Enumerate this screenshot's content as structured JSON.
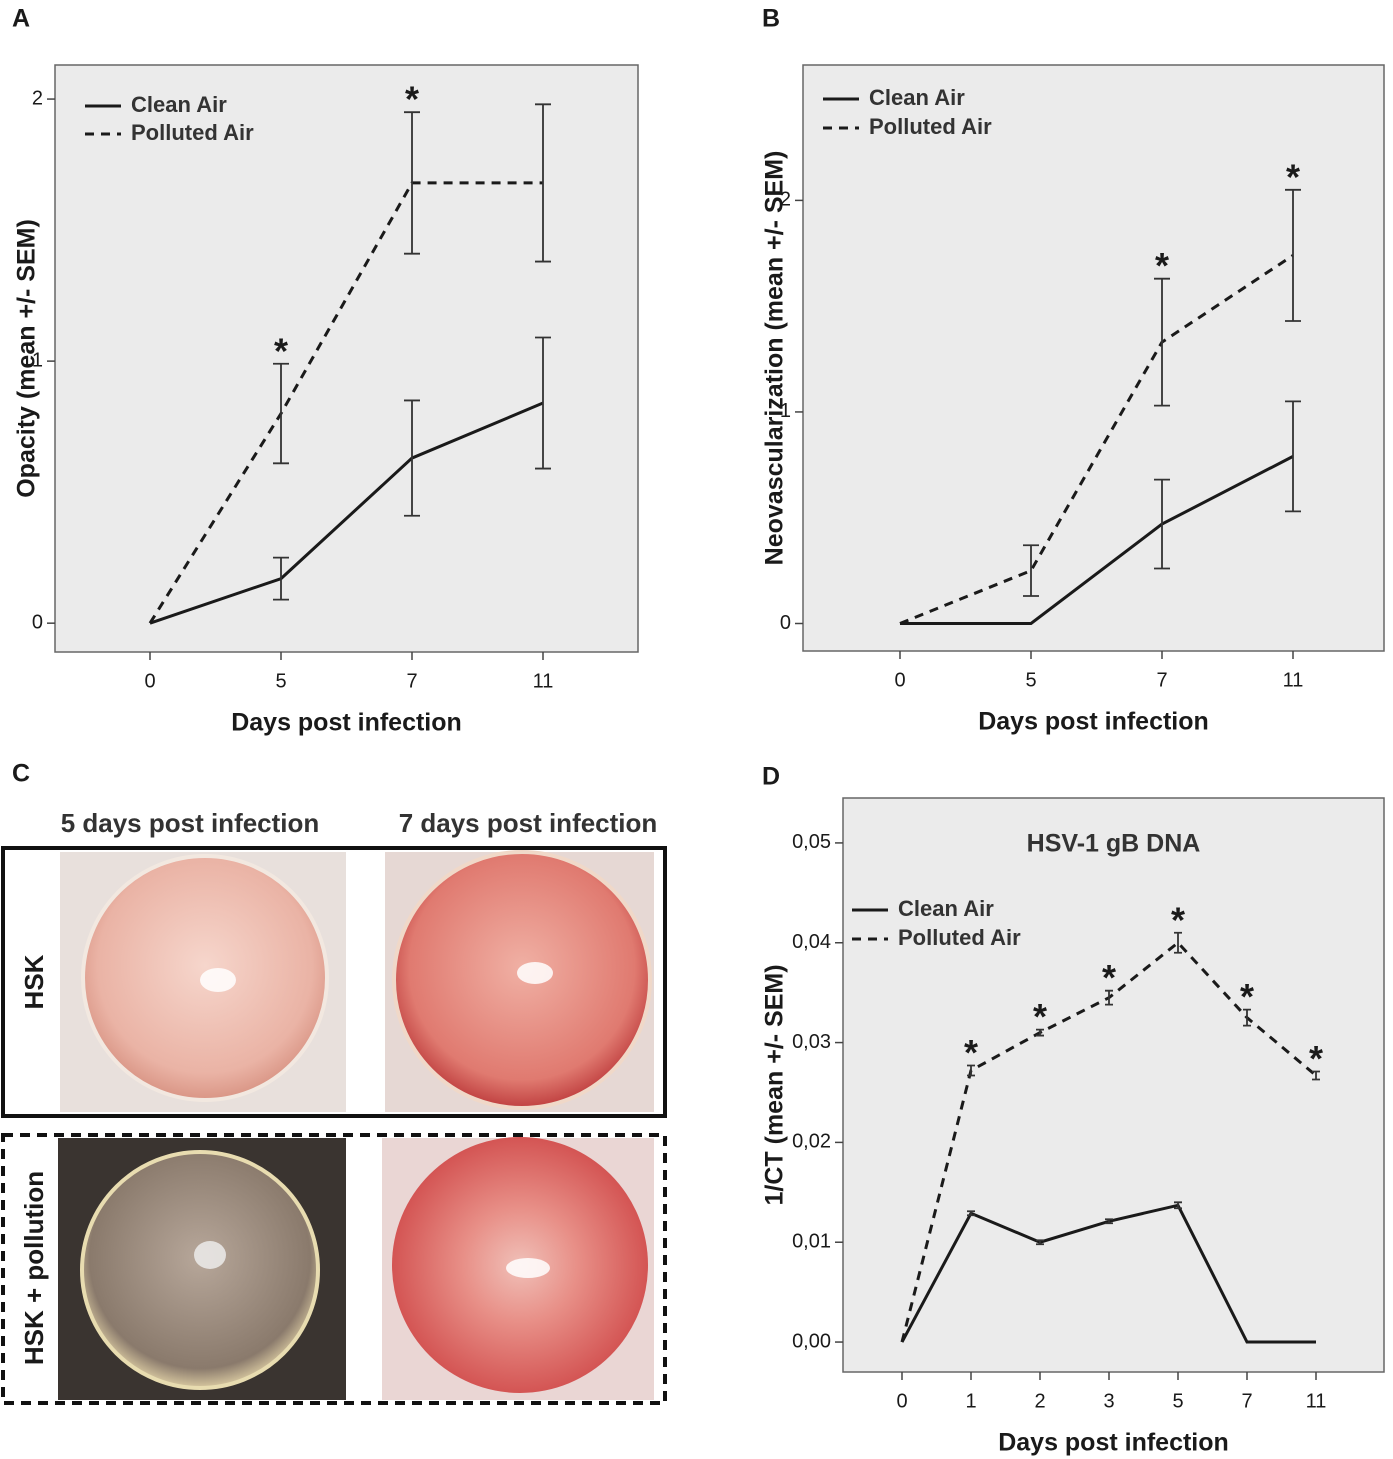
{
  "chart_data": [
    {
      "type": "line",
      "panel": "A",
      "ylabel": "Opacity (mean +/- SEM)",
      "xlabel": "Days post infection",
      "categories": [
        "0",
        "5",
        "7",
        "11"
      ],
      "ylim": [
        -0.11,
        2.13
      ],
      "yticks": [
        0,
        1,
        2
      ],
      "legend": "upper left",
      "series": [
        {
          "name": "Clean Air",
          "color": "#1a1a1a",
          "style": "solid",
          "values": [
            0,
            0.17,
            0.63,
            0.84
          ],
          "errors": [
            null,
            0.08,
            0.22,
            0.25
          ]
        },
        {
          "name": "Polluted Air",
          "color": "#1a1a1a",
          "style": "dashed",
          "values": [
            0,
            0.8,
            1.68,
            1.68
          ],
          "errors": [
            null,
            0.19,
            0.27,
            0.3
          ]
        }
      ],
      "annotations": [
        {
          "text": "*",
          "category": "5"
        },
        {
          "text": "*",
          "category": "7"
        }
      ]
    },
    {
      "type": "line",
      "panel": "B",
      "ylabel": "Neovascularization (mean +/- SEM)",
      "xlabel": "Days post infection",
      "categories": [
        "0",
        "5",
        "7",
        "11"
      ],
      "ylim": [
        -0.13,
        2.64
      ],
      "yticks": [
        0,
        1,
        2
      ],
      "legend": "upper left",
      "series": [
        {
          "name": "Clean Air",
          "color": "#1a1a1a",
          "style": "solid",
          "values": [
            0,
            0,
            0.47,
            0.79
          ],
          "errors": [
            null,
            null,
            0.21,
            0.26
          ]
        },
        {
          "name": "Polluted Air",
          "color": "#1a1a1a",
          "style": "dashed",
          "values": [
            0,
            0.25,
            1.33,
            1.74
          ],
          "errors": [
            null,
            0.12,
            0.3,
            0.31
          ]
        }
      ],
      "annotations": [
        {
          "text": "*",
          "category": "7"
        },
        {
          "text": "*",
          "category": "11"
        }
      ]
    },
    {
      "type": "line",
      "panel": "D",
      "title": "HSV-1 gB DNA",
      "ylabel": "1/CT (mean +/- SEM)",
      "xlabel": "Days post infection",
      "categories": [
        "0",
        "1",
        "2",
        "3",
        "5",
        "7",
        "11"
      ],
      "ylim": [
        -0.003,
        0.0545
      ],
      "yticks": [
        {
          "value": 0,
          "label": "0,00"
        },
        {
          "value": 0.01,
          "label": "0,01"
        },
        {
          "value": 0.02,
          "label": "0,02"
        },
        {
          "value": 0.03,
          "label": "0,03"
        },
        {
          "value": 0.04,
          "label": "0,04"
        },
        {
          "value": 0.05,
          "label": "0,05"
        }
      ],
      "legend": "upper left",
      "series": [
        {
          "name": "Clean Air",
          "color": "#1a1a1a",
          "style": "solid",
          "values": [
            0,
            0.0129,
            0.01,
            0.0121,
            0.0137,
            0,
            0
          ],
          "errors": [
            null,
            0.0002,
            0.0002,
            0.0002,
            0.0003,
            null,
            null
          ]
        },
        {
          "name": "Polluted Air",
          "color": "#1a1a1a",
          "style": "dashed",
          "values": [
            0,
            0.0272,
            0.031,
            0.0345,
            0.04,
            0.0325,
            0.0267
          ],
          "errors": [
            null,
            0.0005,
            0.0003,
            0.0007,
            0.001,
            0.0008,
            0.0004
          ]
        }
      ],
      "annotations": [
        {
          "text": "*",
          "category": "1"
        },
        {
          "text": "*",
          "category": "2"
        },
        {
          "text": "*",
          "category": "3"
        },
        {
          "text": "*",
          "category": "5"
        },
        {
          "text": "*",
          "category": "7"
        },
        {
          "text": "*",
          "category": "11"
        }
      ]
    }
  ],
  "photo_panel": {
    "panel": "C",
    "columns": [
      "5 days post infection",
      "7 days post infection"
    ],
    "rows": [
      "HSK",
      "HSK + pollution"
    ]
  }
}
